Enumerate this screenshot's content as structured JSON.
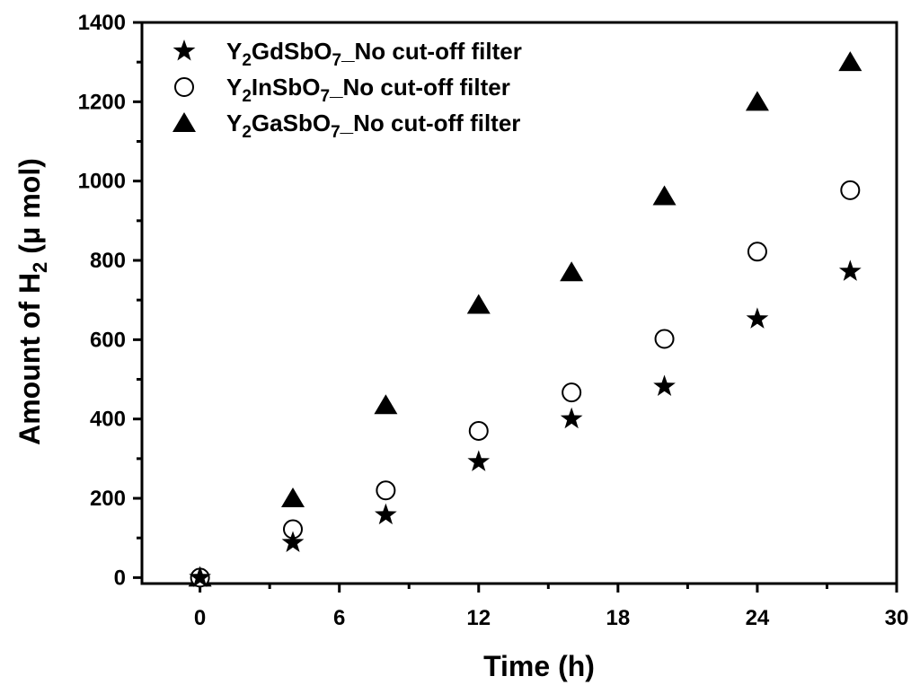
{
  "chart_data": {
    "type": "scatter",
    "title": "",
    "xlabel": "Time (h)",
    "ylabel": {
      "prefix": "Amount of H",
      "sub": "2",
      "suffix": " (μ mol)"
    },
    "xlim": [
      -2.5,
      30
    ],
    "ylim": [
      -15,
      1400
    ],
    "xticks": [
      0,
      6,
      12,
      18,
      24,
      30
    ],
    "yticks": [
      0,
      200,
      400,
      600,
      800,
      1000,
      1200,
      1400
    ],
    "x": [
      0,
      4,
      8,
      12,
      16,
      20,
      24,
      28
    ],
    "series": [
      {
        "name": "Y2GdSbO7_No cut-off filter",
        "label_parts": [
          {
            "t": "Y",
            "sub": false
          },
          {
            "t": "2",
            "sub": true
          },
          {
            "t": "GdSbO",
            "sub": false
          },
          {
            "t": "7",
            "sub": true
          },
          {
            "t": "_No cut-off filter",
            "sub": false
          }
        ],
        "marker": "star",
        "values": [
          0,
          88,
          158,
          292,
          400,
          482,
          652,
          772
        ]
      },
      {
        "name": "Y2InSbO7_No cut-off filter",
        "label_parts": [
          {
            "t": "Y",
            "sub": false
          },
          {
            "t": "2",
            "sub": true
          },
          {
            "t": "InSbO",
            "sub": false
          },
          {
            "t": "7",
            "sub": true
          },
          {
            "t": "_No cut-off filter",
            "sub": false
          }
        ],
        "marker": "circle-open",
        "values": [
          0,
          122,
          220,
          370,
          467,
          602,
          822,
          977
        ]
      },
      {
        "name": "Y2GaSbO7_No cut-off filter",
        "label_parts": [
          {
            "t": "Y",
            "sub": false
          },
          {
            "t": "2",
            "sub": true
          },
          {
            "t": "GaSbO",
            "sub": false
          },
          {
            "t": "7",
            "sub": true
          },
          {
            "t": "_No cut-off filter",
            "sub": false
          }
        ],
        "marker": "triangle",
        "values": [
          0,
          200,
          435,
          688,
          770,
          962,
          1200,
          1300
        ]
      }
    ],
    "legend_position": "top-left",
    "grid": false
  }
}
